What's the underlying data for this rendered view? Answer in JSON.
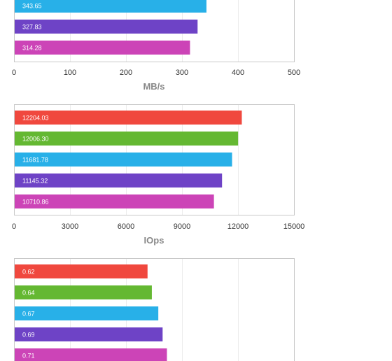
{
  "chart_data": [
    {
      "type": "bar",
      "orientation": "horizontal",
      "title": "",
      "xlabel": "MB/s",
      "ylabel": "",
      "xlim": [
        0,
        500
      ],
      "ticks": [
        "0",
        "100",
        "200",
        "300",
        "400",
        "500"
      ],
      "tick_values": [
        0,
        100,
        200,
        300,
        400,
        500
      ],
      "grid": true,
      "bars": [
        {
          "value": 343.65,
          "label": "343.65",
          "color": "#28b0e8"
        },
        {
          "value": 327.83,
          "label": "327.83",
          "color": "#6e43c6"
        },
        {
          "value": 314.28,
          "label": "314.28",
          "color": "#cc44b7"
        }
      ]
    },
    {
      "type": "bar",
      "orientation": "horizontal",
      "title": "",
      "xlabel": "IOps",
      "ylabel": "",
      "xlim": [
        0,
        15000
      ],
      "ticks": [
        "0",
        "3000",
        "6000",
        "9000",
        "12000",
        "15000"
      ],
      "tick_values": [
        0,
        3000,
        6000,
        9000,
        12000,
        15000
      ],
      "grid": true,
      "bars": [
        {
          "value": 12204.03,
          "label": "12204.03",
          "color": "#f0483e"
        },
        {
          "value": 12006.3,
          "label": "12006.30",
          "color": "#64b832"
        },
        {
          "value": 11681.78,
          "label": "11681.78",
          "color": "#28b0e8"
        },
        {
          "value": 11145.32,
          "label": "11145.32",
          "color": "#6e43c6"
        },
        {
          "value": 10710.86,
          "label": "10710.86",
          "color": "#cc44b7"
        }
      ]
    },
    {
      "type": "bar",
      "orientation": "horizontal",
      "title": "",
      "xlabel": "",
      "ylabel": "",
      "xlim": [
        0,
        1.3
      ],
      "ticks": [],
      "tick_values": [],
      "grid": true,
      "bars": [
        {
          "value": 0.62,
          "label": "0.62",
          "color": "#f0483e"
        },
        {
          "value": 0.64,
          "label": "0.64",
          "color": "#64b832"
        },
        {
          "value": 0.67,
          "label": "0.67",
          "color": "#28b0e8"
        },
        {
          "value": 0.69,
          "label": "0.69",
          "color": "#6e43c6"
        },
        {
          "value": 0.71,
          "label": "0.71",
          "color": "#cc44b7"
        }
      ]
    }
  ]
}
